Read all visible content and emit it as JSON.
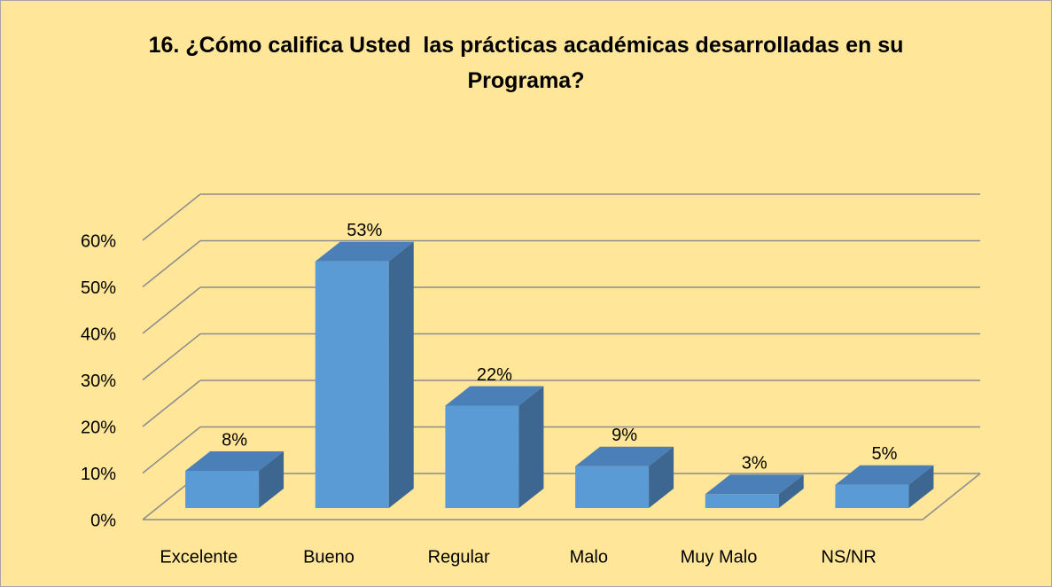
{
  "chart_data": {
    "type": "bar3d",
    "title": "16. ¿Cómo califica Usted  las prácticas académicas desarrolladas en su Programa?",
    "categories": [
      "Excelente",
      "Bueno",
      "Regular",
      "Malo",
      "Muy Malo",
      "NS/NR"
    ],
    "values": [
      8,
      53,
      22,
      9,
      3,
      5
    ],
    "value_labels": [
      "8%",
      "53%",
      "22%",
      "9%",
      "3%",
      "5%"
    ],
    "color": "#5b9bd5",
    "ylim": [
      0,
      60
    ],
    "yticks": [
      {
        "value": 0,
        "label": "0%"
      },
      {
        "value": 10,
        "label": "10%"
      },
      {
        "value": 20,
        "label": "20%"
      },
      {
        "value": 30,
        "label": "30%"
      },
      {
        "value": 40,
        "label": "40%"
      },
      {
        "value": 50,
        "label": "50%"
      },
      {
        "value": 60,
        "label": "60%"
      }
    ],
    "grid": true
  }
}
